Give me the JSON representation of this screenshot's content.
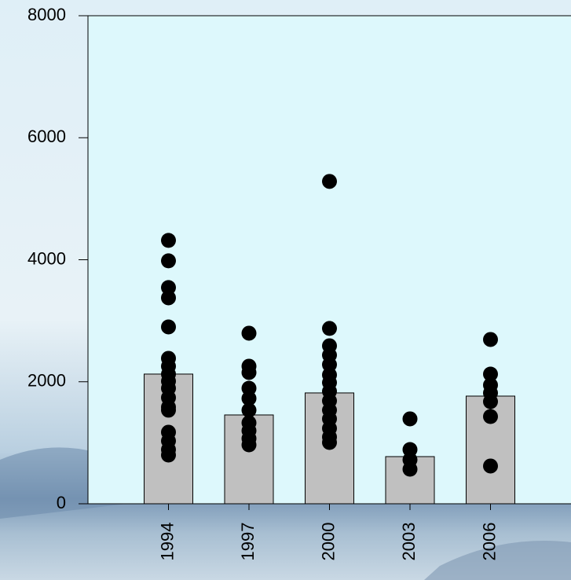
{
  "chart_data": {
    "type": "bar",
    "categories": [
      "1994",
      "1997",
      "2000",
      "2003",
      "2006"
    ],
    "values": [
      2126,
      1456,
      1817,
      773,
      1765
    ],
    "color": "#c0c0c0",
    "points": [
      [
        4317,
        3982,
        3544,
        3376,
        2899,
        2384,
        2255,
        2126,
        2010,
        1894,
        1740,
        1585,
        1534,
        1173,
        1031,
        889,
        799
      ],
      [
        2796,
        2255,
        2152,
        1894,
        1727,
        1534,
        1327,
        1198,
        1070,
        966
      ],
      [
        5284,
        2874,
        2590,
        2436,
        2281,
        2113,
        1985,
        1843,
        1688,
        1534,
        1392,
        1237,
        1095,
        1005
      ],
      [
        1392,
        889,
        722,
        567
      ],
      [
        2693,
        2126,
        1946,
        1817,
        1675,
        1430,
        619
      ]
    ],
    "point_color": "#000000",
    "ylim": [
      0,
      8000
    ],
    "yticks": [
      0,
      2000,
      4000,
      6000,
      8000
    ]
  }
}
